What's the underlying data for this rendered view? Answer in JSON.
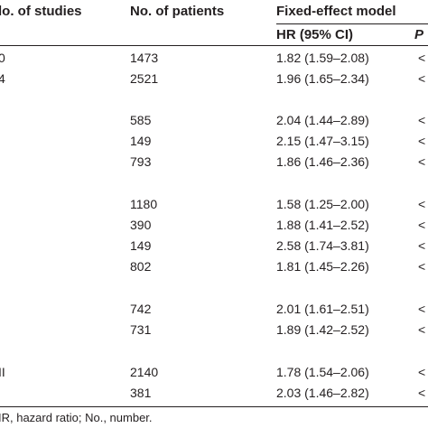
{
  "table": {
    "headers": {
      "studies": "lo. of studies",
      "patients": "No. of patients",
      "model": "Fixed-effect model",
      "hr": "HR (95% CI)",
      "p": "P"
    },
    "rows": [
      {
        "studies": "0",
        "patients": "1473",
        "hr": "1.82 (1.59–2.08)",
        "p": "<"
      },
      {
        "studies": "4",
        "patients": "2521",
        "hr": "1.96 (1.65–2.34)",
        "p": "<"
      },
      {
        "studies": "",
        "patients": "585",
        "hr": "2.04 (1.44–2.89)",
        "p": "<"
      },
      {
        "studies": "",
        "patients": "149",
        "hr": "2.15 (1.47–3.15)",
        "p": "<"
      },
      {
        "studies": "",
        "patients": "793",
        "hr": "1.86 (1.46–2.36)",
        "p": "<"
      },
      {
        "studies": "",
        "patients": "1180",
        "hr": "1.58 (1.25–2.00)",
        "p": "<"
      },
      {
        "studies": "",
        "patients": "390",
        "hr": "1.88 (1.41–2.52)",
        "p": "<"
      },
      {
        "studies": "",
        "patients": "149",
        "hr": "2.58 (1.74–3.81)",
        "p": "<"
      },
      {
        "studies": "",
        "patients": "802",
        "hr": "1.81 (1.45–2.26)",
        "p": "<"
      },
      {
        "studies": "",
        "patients": "742",
        "hr": "2.01 (1.61–2.51)",
        "p": "<"
      },
      {
        "studies": "",
        "patients": "731",
        "hr": "1.89 (1.42–2.52)",
        "p": "<"
      },
      {
        "studies": "II",
        "patients": "2140",
        "hr": "1.78 (1.54–2.06)",
        "p": "<"
      },
      {
        "studies": "",
        "patients": "381",
        "hr": "2.03 (1.46–2.82)",
        "p": "<"
      }
    ],
    "footnote": "IR, hazard ratio; No., number."
  }
}
